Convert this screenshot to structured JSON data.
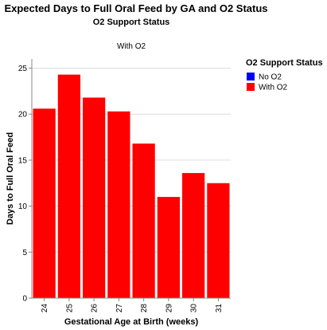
{
  "chart_data": {
    "type": "bar",
    "title": "Expected Days to Full Oral Feed by GA and O2 Status",
    "facet_header": "O2 Support Status",
    "facet_label": "With O2",
    "xlabel": "Gestational Age at Birth (weeks)",
    "ylabel": "Days to Full Oral Feed",
    "categories": [
      "24",
      "25",
      "26",
      "27",
      "28",
      "29",
      "30",
      "31"
    ],
    "series": [
      {
        "name": "With O2",
        "color": "#ff0000",
        "values": [
          20.6,
          24.3,
          21.8,
          20.3,
          16.8,
          11.0,
          13.6,
          12.5
        ]
      }
    ],
    "ylim": [
      0,
      26
    ],
    "yticks": [
      0,
      5,
      10,
      15,
      20,
      25
    ],
    "grid": true,
    "legend": {
      "title": "O2 Support Status",
      "placement": "right",
      "items": [
        {
          "label": "No O2",
          "color": "#0000ff"
        },
        {
          "label": "With O2",
          "color": "#ff0000"
        }
      ]
    }
  }
}
